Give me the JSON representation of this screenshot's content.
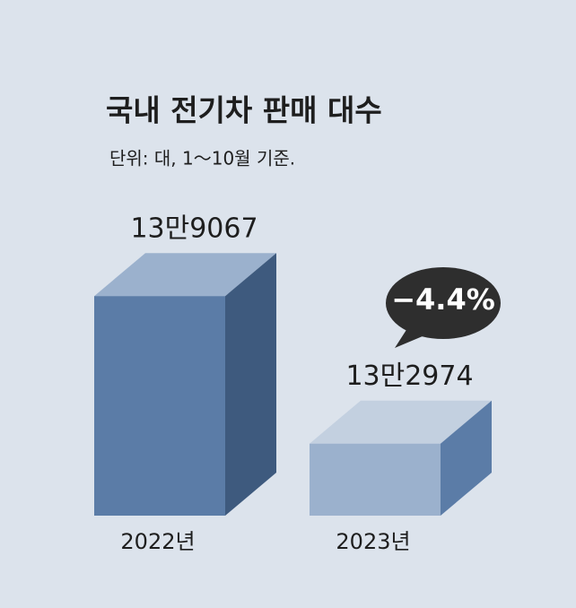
{
  "chart_data": {
    "type": "bar3d",
    "title": "국내 전기차 판매 대수",
    "subtitle": "단위: 대, 1～10월 기준.",
    "categories": [
      "2022년",
      "2023년"
    ],
    "values": [
      139067,
      132974
    ],
    "value_labels": [
      "13만9067",
      "13만2974"
    ],
    "annotation": "−4.4%",
    "ylim": [
      130000,
      140000
    ],
    "colors": [
      "#5b7ca7",
      "#9bb1cd"
    ],
    "top_colors": [
      "#9bb1cd",
      "#c3d0e0"
    ],
    "side_colors": [
      "#3e5a7e",
      "#5b7ca7"
    ]
  }
}
